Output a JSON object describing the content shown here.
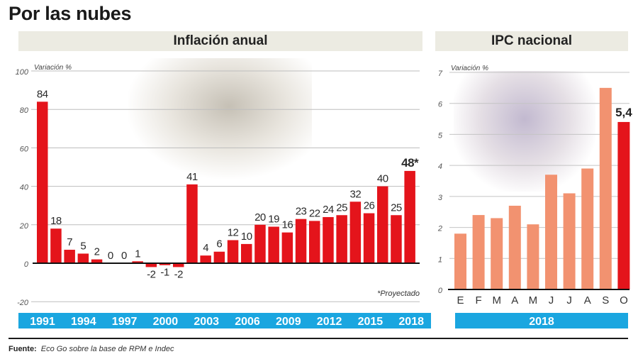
{
  "title": "Por las nubes",
  "footer": {
    "label": "Fuente:",
    "text": "Eco Go sobre la base de RPM e Indec"
  },
  "colors": {
    "bar_red": "#e4141b",
    "bar_salmon": "#f29270",
    "band_blue": "#1aa6e0",
    "header_bg": "#ecebe2"
  },
  "chart_data": [
    {
      "type": "bar",
      "title": "Inflación anual",
      "ylabel": "Variación %",
      "ylim": [
        -20,
        100
      ],
      "yticks": [
        "100",
        "80",
        "60",
        "40",
        "20",
        "0",
        "-20"
      ],
      "ytick_values": [
        100,
        80,
        60,
        40,
        20,
        0,
        -20
      ],
      "grid": true,
      "categories": [
        "1991",
        "1992",
        "1993",
        "1994",
        "1995",
        "1996",
        "1997",
        "1998",
        "1999",
        "2000",
        "2001",
        "2002",
        "2003",
        "2004",
        "2005",
        "2006",
        "2007",
        "2008",
        "2009",
        "2010",
        "2011",
        "2012",
        "2013",
        "2014",
        "2015",
        "2016",
        "2017",
        "2018"
      ],
      "values": [
        84,
        18,
        7,
        5,
        2,
        0,
        0,
        1,
        -2,
        -1,
        -2,
        41,
        4,
        6,
        12,
        10,
        20,
        19,
        16,
        23,
        22,
        24,
        25,
        32,
        26,
        40,
        25,
        48
      ],
      "data_labels": [
        "84",
        "18",
        "7",
        "5",
        "2",
        "0",
        "0",
        "1",
        "-2",
        "-1",
        "-2",
        "41",
        "4",
        "6",
        "12",
        "10",
        "20",
        "19",
        "16",
        "23",
        "22",
        "24",
        "25",
        "32",
        "26",
        "40",
        "25",
        "48*"
      ],
      "xtick_labels": [
        "1991",
        "1994",
        "1997",
        "2000",
        "2003",
        "2006",
        "2009",
        "2012",
        "2015",
        "2018"
      ],
      "annotation": "*Proyectado"
    },
    {
      "type": "bar",
      "title": "IPC nacional",
      "ylabel": "Variación %",
      "ylim": [
        0,
        7
      ],
      "yticks": [
        "7",
        "6",
        "5",
        "4",
        "3",
        "2",
        "1",
        "0"
      ],
      "ytick_values": [
        7,
        6,
        5,
        4,
        3,
        2,
        1,
        0
      ],
      "grid": true,
      "categories": [
        "E",
        "F",
        "M",
        "A",
        "M",
        "J",
        "J",
        "A",
        "S",
        "O"
      ],
      "values": [
        1.8,
        2.4,
        2.3,
        2.7,
        2.1,
        3.7,
        3.1,
        3.9,
        6.5,
        5.4
      ],
      "highlight_index": 9,
      "highlight_label": "5,4",
      "xband_label": "2018"
    }
  ]
}
